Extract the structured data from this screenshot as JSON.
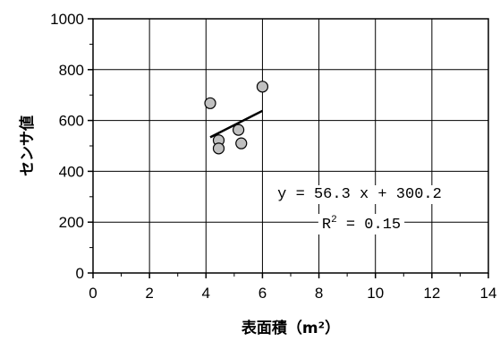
{
  "chart_data": {
    "type": "scatter",
    "xlabel": "表面積（m²）",
    "ylabel": "センサ値",
    "xlim": [
      0,
      14
    ],
    "ylim": [
      0,
      1000
    ],
    "x_ticks": [
      "0",
      "2",
      "4",
      "6",
      "8",
      "10",
      "12",
      "14"
    ],
    "y_ticks": [
      "0",
      "200",
      "400",
      "600",
      "800",
      "1000"
    ],
    "grid": true,
    "points": [
      {
        "x": 4.15,
        "y": 668
      },
      {
        "x": 4.45,
        "y": 522
      },
      {
        "x": 4.45,
        "y": 490
      },
      {
        "x": 5.15,
        "y": 563
      },
      {
        "x": 5.25,
        "y": 510
      },
      {
        "x": 6.0,
        "y": 733
      }
    ],
    "trendline": {
      "slope": 56.3,
      "intercept": 300.2,
      "x_from": 4.15,
      "x_to": 6.0
    },
    "annotations": {
      "equation": "y = 56.3 x + 300.2",
      "r2_label": "R",
      "r2_sup": "2",
      "r2_value": " = 0.15"
    },
    "colors": {
      "marker_fill": "#c0c0c0",
      "marker_stroke": "#000000",
      "grid": "#000000"
    }
  }
}
